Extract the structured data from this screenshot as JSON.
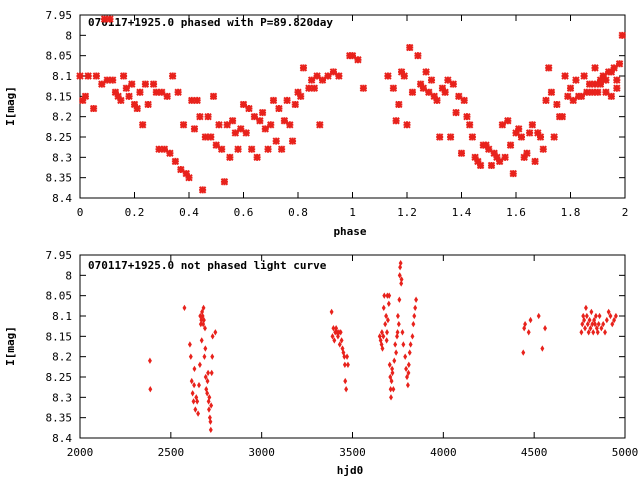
{
  "chart_data": [
    {
      "type": "scatter",
      "title": "070117+1925.0 phased with P=89.820day",
      "xlabel": "phase",
      "ylabel": "I[mag]",
      "xlim": [
        0,
        2
      ],
      "ylim": [
        7.95,
        8.4
      ],
      "y_inverted": true,
      "xticks": [
        "0",
        "0.2",
        "0.4",
        "0.6",
        "0.8",
        "1",
        "1.2",
        "1.4",
        "1.6",
        "1.8",
        "2"
      ],
      "yticks": [
        "7.95",
        "8",
        "8.05",
        "8.1",
        "8.15",
        "8.2",
        "8.25",
        "8.3",
        "8.35",
        "8.4"
      ],
      "marker_color": "#e8221c",
      "grid": false,
      "points": [
        [
          0.0,
          8.1
        ],
        [
          0.01,
          8.16
        ],
        [
          0.02,
          8.15
        ],
        [
          0.03,
          8.1
        ],
        [
          0.05,
          8.18
        ],
        [
          0.06,
          8.1
        ],
        [
          0.08,
          8.12
        ],
        [
          0.09,
          7.96
        ],
        [
          0.1,
          8.11
        ],
        [
          0.11,
          7.96
        ],
        [
          0.12,
          8.11
        ],
        [
          0.13,
          8.14
        ],
        [
          0.14,
          8.15
        ],
        [
          0.15,
          8.16
        ],
        [
          0.16,
          8.1
        ],
        [
          0.17,
          8.13
        ],
        [
          0.18,
          8.15
        ],
        [
          0.19,
          8.12
        ],
        [
          0.2,
          8.17
        ],
        [
          0.21,
          8.18
        ],
        [
          0.22,
          8.14
        ],
        [
          0.23,
          8.22
        ],
        [
          0.24,
          8.12
        ],
        [
          0.25,
          8.17
        ],
        [
          0.27,
          8.12
        ],
        [
          0.28,
          8.14
        ],
        [
          0.29,
          8.28
        ],
        [
          0.3,
          8.14
        ],
        [
          0.31,
          8.28
        ],
        [
          0.32,
          8.15
        ],
        [
          0.33,
          8.29
        ],
        [
          0.34,
          8.1
        ],
        [
          0.35,
          8.31
        ],
        [
          0.36,
          8.14
        ],
        [
          0.37,
          8.33
        ],
        [
          0.38,
          8.22
        ],
        [
          0.39,
          8.34
        ],
        [
          0.4,
          8.35
        ],
        [
          0.41,
          8.16
        ],
        [
          0.42,
          8.23
        ],
        [
          0.43,
          8.16
        ],
        [
          0.44,
          8.2
        ],
        [
          0.45,
          8.38
        ],
        [
          0.46,
          8.25
        ],
        [
          0.47,
          8.2
        ],
        [
          0.48,
          8.25
        ],
        [
          0.49,
          8.15
        ],
        [
          0.5,
          8.27
        ],
        [
          0.51,
          8.22
        ],
        [
          0.52,
          8.28
        ],
        [
          0.53,
          8.36
        ],
        [
          0.54,
          8.22
        ],
        [
          0.55,
          8.3
        ],
        [
          0.56,
          8.21
        ],
        [
          0.57,
          8.24
        ],
        [
          0.58,
          8.28
        ],
        [
          0.59,
          8.23
        ],
        [
          0.6,
          8.17
        ],
        [
          0.61,
          8.24
        ],
        [
          0.62,
          8.18
        ],
        [
          0.63,
          8.28
        ],
        [
          0.64,
          8.2
        ],
        [
          0.65,
          8.3
        ],
        [
          0.66,
          8.21
        ],
        [
          0.67,
          8.19
        ],
        [
          0.68,
          8.23
        ],
        [
          0.69,
          8.28
        ],
        [
          0.7,
          8.22
        ],
        [
          0.71,
          8.16
        ],
        [
          0.72,
          8.26
        ],
        [
          0.73,
          8.18
        ],
        [
          0.74,
          8.28
        ],
        [
          0.75,
          8.21
        ],
        [
          0.76,
          8.16
        ],
        [
          0.77,
          8.22
        ],
        [
          0.78,
          8.26
        ],
        [
          0.79,
          8.17
        ],
        [
          0.8,
          8.14
        ],
        [
          0.81,
          8.15
        ],
        [
          0.82,
          8.08
        ],
        [
          0.84,
          8.13
        ],
        [
          0.85,
          8.11
        ],
        [
          0.86,
          8.13
        ],
        [
          0.87,
          8.1
        ],
        [
          0.88,
          8.22
        ],
        [
          0.89,
          8.11
        ],
        [
          0.91,
          8.1
        ],
        [
          0.93,
          8.09
        ],
        [
          0.95,
          8.1
        ],
        [
          0.99,
          8.05
        ],
        [
          1.0,
          8.05
        ],
        [
          1.02,
          8.06
        ],
        [
          1.04,
          8.13
        ],
        [
          1.13,
          8.1
        ],
        [
          1.15,
          8.13
        ],
        [
          1.16,
          8.21
        ],
        [
          1.17,
          8.17
        ],
        [
          1.18,
          8.09
        ],
        [
          1.19,
          8.1
        ],
        [
          1.2,
          8.22
        ],
        [
          1.21,
          8.03
        ],
        [
          1.22,
          8.14
        ],
        [
          1.24,
          8.05
        ],
        [
          1.25,
          8.12
        ],
        [
          1.26,
          8.13
        ],
        [
          1.27,
          8.09
        ],
        [
          1.28,
          8.14
        ],
        [
          1.29,
          8.11
        ],
        [
          1.3,
          8.15
        ],
        [
          1.31,
          8.16
        ],
        [
          1.32,
          8.25
        ],
        [
          1.33,
          8.13
        ],
        [
          1.34,
          8.14
        ],
        [
          1.35,
          8.11
        ],
        [
          1.36,
          8.25
        ],
        [
          1.37,
          8.12
        ],
        [
          1.38,
          8.19
        ],
        [
          1.39,
          8.15
        ],
        [
          1.4,
          8.29
        ],
        [
          1.41,
          8.16
        ],
        [
          1.42,
          8.2
        ],
        [
          1.43,
          8.22
        ],
        [
          1.44,
          8.25
        ],
        [
          1.45,
          8.3
        ],
        [
          1.46,
          8.31
        ],
        [
          1.47,
          8.32
        ],
        [
          1.48,
          8.27
        ],
        [
          1.49,
          8.27
        ],
        [
          1.5,
          8.28
        ],
        [
          1.51,
          8.32
        ],
        [
          1.52,
          8.29
        ],
        [
          1.53,
          8.3
        ],
        [
          1.54,
          8.31
        ],
        [
          1.55,
          8.22
        ],
        [
          1.56,
          8.3
        ],
        [
          1.57,
          8.21
        ],
        [
          1.58,
          8.27
        ],
        [
          1.59,
          8.34
        ],
        [
          1.6,
          8.24
        ],
        [
          1.61,
          8.23
        ],
        [
          1.62,
          8.25
        ],
        [
          1.63,
          8.3
        ],
        [
          1.64,
          8.29
        ],
        [
          1.65,
          8.24
        ],
        [
          1.66,
          8.22
        ],
        [
          1.67,
          8.31
        ],
        [
          1.68,
          8.24
        ],
        [
          1.69,
          8.25
        ],
        [
          1.7,
          8.28
        ],
        [
          1.71,
          8.16
        ],
        [
          1.72,
          8.08
        ],
        [
          1.73,
          8.14
        ],
        [
          1.74,
          8.25
        ],
        [
          1.75,
          8.17
        ],
        [
          1.76,
          8.2
        ],
        [
          1.77,
          8.2
        ],
        [
          1.78,
          8.1
        ],
        [
          1.79,
          8.15
        ],
        [
          1.8,
          8.13
        ],
        [
          1.81,
          8.16
        ],
        [
          1.82,
          8.11
        ],
        [
          1.83,
          8.15
        ],
        [
          1.84,
          8.15
        ],
        [
          1.85,
          8.1
        ],
        [
          1.86,
          8.14
        ],
        [
          1.87,
          8.12
        ],
        [
          1.88,
          8.14
        ],
        [
          1.89,
          8.08
        ],
        [
          1.9,
          8.14
        ],
        [
          1.91,
          8.12
        ],
        [
          1.92,
          8.1
        ],
        [
          1.93,
          8.14
        ],
        [
          1.94,
          8.09
        ],
        [
          1.95,
          8.15
        ],
        [
          1.96,
          8.08
        ],
        [
          1.97,
          8.13
        ],
        [
          1.98,
          8.07
        ],
        [
          1.99,
          8.0
        ],
        [
          1.97,
          8.11
        ],
        [
          1.95,
          8.09
        ],
        [
          1.93,
          8.11
        ],
        [
          1.91,
          8.11
        ],
        [
          1.89,
          8.12
        ]
      ]
    },
    {
      "type": "scatter",
      "title": "070117+1925.0 not phased light curve",
      "xlabel": "hjd0",
      "ylabel": "I[mag]",
      "xlim": [
        2000,
        5000
      ],
      "ylim": [
        7.95,
        8.4
      ],
      "y_inverted": true,
      "xticks": [
        "2000",
        "2500",
        "3000",
        "3500",
        "4000",
        "4500",
        "5000"
      ],
      "yticks": [
        "7.95",
        "8",
        "8.05",
        "8.1",
        "8.15",
        "8.2",
        "8.25",
        "8.3",
        "8.35",
        "8.4"
      ],
      "marker_color": "#e8221c",
      "grid": false,
      "points": [
        [
          2385,
          8.21
        ],
        [
          2387,
          8.28
        ],
        [
          2575,
          8.08
        ],
        [
          2605,
          8.17
        ],
        [
          2610,
          8.2
        ],
        [
          2615,
          8.26
        ],
        [
          2620,
          8.29
        ],
        [
          2625,
          8.31
        ],
        [
          2628,
          8.27
        ],
        [
          2630,
          8.23
        ],
        [
          2635,
          8.33
        ],
        [
          2640,
          8.3
        ],
        [
          2645,
          8.31
        ],
        [
          2650,
          8.34
        ],
        [
          2655,
          8.27
        ],
        [
          2660,
          8.22
        ],
        [
          2662,
          8.1
        ],
        [
          2665,
          8.12
        ],
        [
          2668,
          8.11
        ],
        [
          2670,
          8.16
        ],
        [
          2672,
          8.09
        ],
        [
          2675,
          8.1
        ],
        [
          2678,
          8.12
        ],
        [
          2680,
          8.08
        ],
        [
          2682,
          8.11
        ],
        [
          2685,
          8.2
        ],
        [
          2688,
          8.13
        ],
        [
          2690,
          8.18
        ],
        [
          2692,
          8.25
        ],
        [
          2695,
          8.28
        ],
        [
          2700,
          8.29
        ],
        [
          2702,
          8.26
        ],
        [
          2705,
          8.24
        ],
        [
          2708,
          8.31
        ],
        [
          2710,
          8.33
        ],
        [
          2712,
          8.3
        ],
        [
          2715,
          8.35
        ],
        [
          2718,
          8.36
        ],
        [
          2720,
          8.38
        ],
        [
          2722,
          8.32
        ],
        [
          2725,
          8.24
        ],
        [
          2728,
          8.2
        ],
        [
          2730,
          8.15
        ],
        [
          2745,
          8.14
        ],
        [
          3385,
          8.09
        ],
        [
          3390,
          8.15
        ],
        [
          3395,
          8.13
        ],
        [
          3400,
          8.16
        ],
        [
          3405,
          8.14
        ],
        [
          3410,
          8.13
        ],
        [
          3415,
          8.14
        ],
        [
          3420,
          8.15
        ],
        [
          3425,
          8.14
        ],
        [
          3430,
          8.17
        ],
        [
          3435,
          8.14
        ],
        [
          3440,
          8.16
        ],
        [
          3445,
          8.18
        ],
        [
          3450,
          8.19
        ],
        [
          3455,
          8.2
        ],
        [
          3458,
          8.22
        ],
        [
          3460,
          8.26
        ],
        [
          3465,
          8.28
        ],
        [
          3470,
          8.2
        ],
        [
          3475,
          8.22
        ],
        [
          3650,
          8.15
        ],
        [
          3655,
          8.16
        ],
        [
          3660,
          8.17
        ],
        [
          3662,
          8.14
        ],
        [
          3665,
          8.18
        ],
        [
          3670,
          8.15
        ],
        [
          3672,
          8.08
        ],
        [
          3675,
          8.05
        ],
        [
          3680,
          8.12
        ],
        [
          3685,
          8.1
        ],
        [
          3688,
          8.16
        ],
        [
          3690,
          8.14
        ],
        [
          3692,
          8.05
        ],
        [
          3695,
          8.11
        ],
        [
          3700,
          8.07
        ],
        [
          3702,
          8.05
        ],
        [
          3705,
          8.22
        ],
        [
          3708,
          8.25
        ],
        [
          3710,
          8.28
        ],
        [
          3712,
          8.3
        ],
        [
          3715,
          8.26
        ],
        [
          3718,
          8.23
        ],
        [
          3720,
          8.24
        ],
        [
          3725,
          8.28
        ],
        [
          3730,
          8.21
        ],
        [
          3735,
          8.17
        ],
        [
          3740,
          8.19
        ],
        [
          3745,
          8.15
        ],
        [
          3748,
          8.14
        ],
        [
          3750,
          8.1
        ],
        [
          3755,
          8.12
        ],
        [
          3758,
          8.06
        ],
        [
          3760,
          8.0
        ],
        [
          3762,
          7.98
        ],
        [
          3765,
          7.97
        ],
        [
          3768,
          8.02
        ],
        [
          3770,
          8.01
        ],
        [
          3775,
          8.14
        ],
        [
          3780,
          8.17
        ],
        [
          3790,
          8.2
        ],
        [
          3795,
          8.23
        ],
        [
          3800,
          8.25
        ],
        [
          3805,
          8.27
        ],
        [
          3808,
          8.24
        ],
        [
          3810,
          8.22
        ],
        [
          3815,
          8.19
        ],
        [
          3820,
          8.17
        ],
        [
          3830,
          8.15
        ],
        [
          3835,
          8.12
        ],
        [
          3840,
          8.1
        ],
        [
          3845,
          8.08
        ],
        [
          3850,
          8.06
        ],
        [
          4440,
          8.19
        ],
        [
          4445,
          8.13
        ],
        [
          4450,
          8.12
        ],
        [
          4470,
          8.14
        ],
        [
          4480,
          8.11
        ],
        [
          4525,
          8.1
        ],
        [
          4545,
          8.18
        ],
        [
          4560,
          8.13
        ],
        [
          4760,
          8.14
        ],
        [
          4765,
          8.12
        ],
        [
          4770,
          8.1
        ],
        [
          4775,
          8.11
        ],
        [
          4780,
          8.13
        ],
        [
          4785,
          8.08
        ],
        [
          4790,
          8.1
        ],
        [
          4795,
          8.12
        ],
        [
          4800,
          8.14
        ],
        [
          4805,
          8.11
        ],
        [
          4810,
          8.13
        ],
        [
          4815,
          8.09
        ],
        [
          4820,
          8.12
        ],
        [
          4825,
          8.14
        ],
        [
          4830,
          8.11
        ],
        [
          4835,
          8.12
        ],
        [
          4840,
          8.1
        ],
        [
          4845,
          8.13
        ],
        [
          4850,
          8.14
        ],
        [
          4855,
          8.12
        ],
        [
          4860,
          8.1
        ],
        [
          4870,
          8.13
        ],
        [
          4880,
          8.12
        ],
        [
          4890,
          8.14
        ],
        [
          4900,
          8.11
        ],
        [
          4910,
          8.09
        ],
        [
          4920,
          8.1
        ],
        [
          4930,
          8.12
        ],
        [
          4940,
          8.11
        ],
        [
          4950,
          8.1
        ]
      ]
    }
  ]
}
